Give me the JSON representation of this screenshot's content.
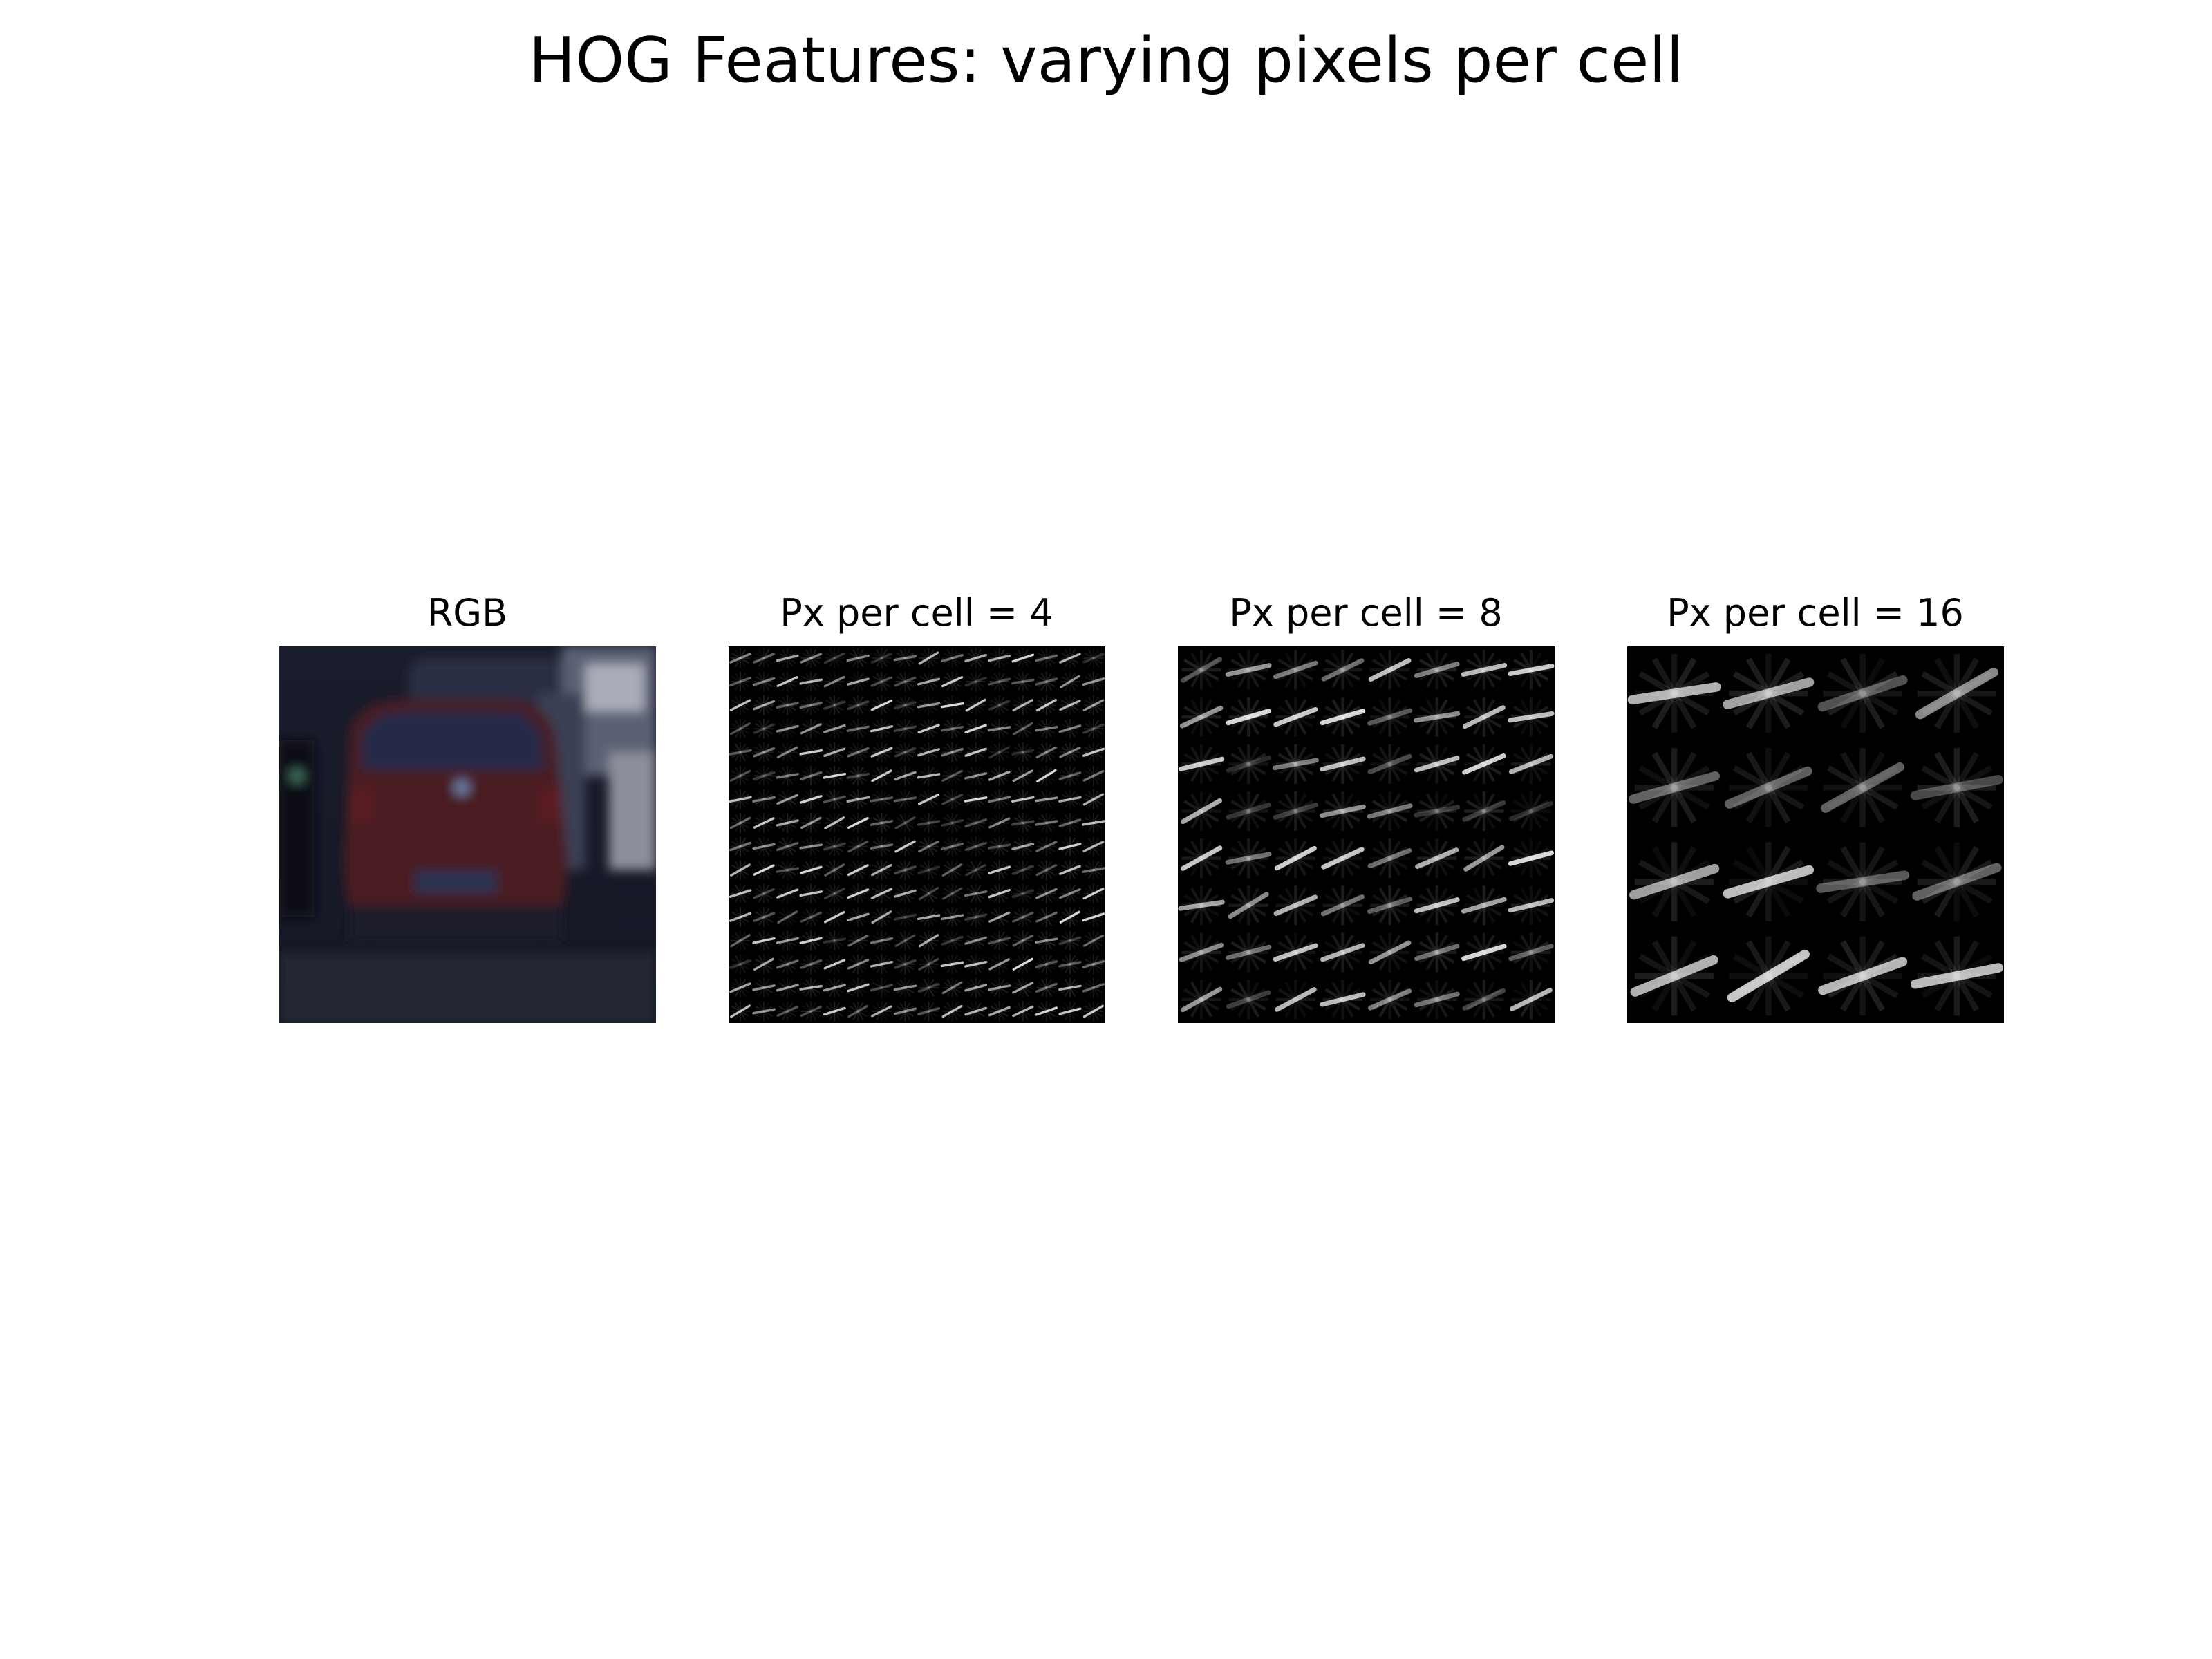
{
  "figure": {
    "title": "HOG Features: varying pixels per cell"
  },
  "panels": [
    {
      "title": "RGB",
      "kind": "rgb"
    },
    {
      "title": "Px per cell = 4",
      "kind": "hog",
      "pixels_per_cell": 4
    },
    {
      "title": "Px per cell = 8",
      "kind": "hog",
      "pixels_per_cell": 8
    },
    {
      "title": "Px per cell = 16",
      "kind": "hog",
      "pixels_per_cell": 16
    }
  ],
  "colors": {
    "background": "#ffffff",
    "hog_background": "#000000",
    "rgb_scene_base": "#161a28",
    "car_body": "#4a1a22",
    "rear_window": "#262c4a",
    "plate": "#2c3350",
    "road": "#202633"
  }
}
